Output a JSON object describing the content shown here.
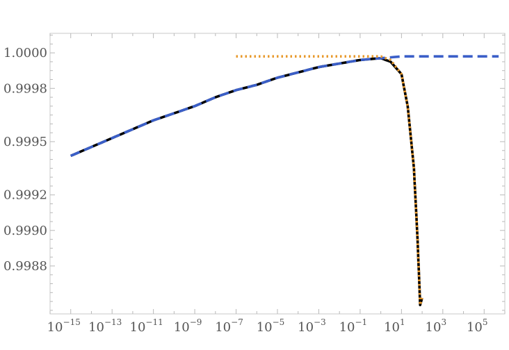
{
  "chart_data": {
    "type": "line",
    "title": "",
    "xlabel": "",
    "ylabel": "",
    "x_scale": "log",
    "xlim": [
      1e-16,
      1000000.0
    ],
    "ylim": [
      0.99853,
      1.00011
    ],
    "grid": false,
    "legend": "none",
    "x_tick_labels": [
      {
        "base": "10",
        "exp": "−15",
        "value": 1e-15
      },
      {
        "base": "10",
        "exp": "−13",
        "value": 1e-13
      },
      {
        "base": "10",
        "exp": "−11",
        "value": 1e-11
      },
      {
        "base": "10",
        "exp": "−9",
        "value": 1e-09
      },
      {
        "base": "10",
        "exp": "−7",
        "value": 1e-07
      },
      {
        "base": "10",
        "exp": "−5",
        "value": 1e-05
      },
      {
        "base": "10",
        "exp": "−3",
        "value": 0.001
      },
      {
        "base": "10",
        "exp": "−1",
        "value": 0.1
      },
      {
        "base": "10",
        "exp": "1",
        "value": 10
      },
      {
        "base": "10",
        "exp": "3",
        "value": 1000
      },
      {
        "base": "10",
        "exp": "5",
        "value": 100000
      }
    ],
    "y_tick_labels": [
      {
        "label": "1.0000",
        "value": 1.0
      },
      {
        "label": "0.9998",
        "value": 0.9998
      },
      {
        "label": "0.9995",
        "value": 0.9995
      },
      {
        "label": "0.9992",
        "value": 0.9992
      },
      {
        "label": "0.9990",
        "value": 0.999
      },
      {
        "label": "0.9988",
        "value": 0.9988
      }
    ],
    "series": [
      {
        "style": "solid",
        "color": "#000000",
        "x": [
          1e-15,
          1e-14,
          1e-13,
          1e-12,
          1e-11,
          1e-10,
          1e-09,
          1e-08,
          1e-07,
          1e-06,
          1e-05,
          0.0001,
          0.001,
          0.01,
          0.1,
          1,
          3,
          10,
          20,
          40,
          60,
          80,
          100
        ],
        "y": [
          0.99942,
          0.99947,
          0.99952,
          0.99957,
          0.99962,
          0.99966,
          0.9997,
          0.99975,
          0.99979,
          0.99982,
          0.99986,
          0.99989,
          0.99992,
          0.99994,
          0.99996,
          0.99997,
          0.99995,
          0.99988,
          0.9997,
          0.99935,
          0.99895,
          0.99858,
          0.99862
        ]
      },
      {
        "style": "dashed",
        "color": "#3b5fc8",
        "x": [
          1e-15,
          1e-14,
          1e-13,
          1e-12,
          1e-11,
          1e-10,
          1e-09,
          1e-08,
          1e-07,
          1e-06,
          1e-05,
          0.0001,
          0.001,
          0.01,
          0.1,
          1,
          10,
          100,
          1000,
          10000.0,
          100000.0,
          500000.0
        ],
        "y": [
          0.99942,
          0.99947,
          0.99952,
          0.99957,
          0.99962,
          0.99966,
          0.9997,
          0.99975,
          0.99979,
          0.99982,
          0.99986,
          0.99989,
          0.99992,
          0.99994,
          0.99996,
          0.99997,
          0.99998,
          0.99998,
          0.99998,
          0.99998,
          0.99998,
          0.99998
        ]
      },
      {
        "style": "dotted",
        "color": "#e89a2e",
        "x": [
          1e-07,
          1e-05,
          0.001,
          0.1,
          1,
          3,
          10,
          20,
          40,
          60,
          80,
          100
        ],
        "y": [
          0.99998,
          0.99998,
          0.99998,
          0.99998,
          0.99998,
          0.99996,
          0.99988,
          0.9997,
          0.99935,
          0.99895,
          0.99858,
          0.99862
        ]
      }
    ]
  }
}
